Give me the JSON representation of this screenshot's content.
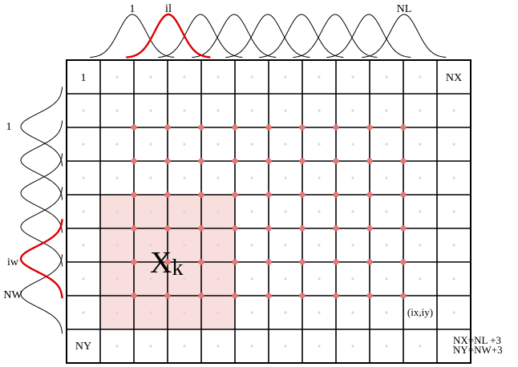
{
  "top_labels": {
    "first": "1",
    "highlight": "il",
    "last": "NL"
  },
  "left_labels": {
    "first": "1",
    "highlight": "iw",
    "last": "NW"
  },
  "cell_labels": {
    "top_left": "1",
    "top_right": "NX",
    "bottom_left": "NY",
    "pixel": "(ix,iy)"
  },
  "region_label": {
    "main": "X",
    "sub": "k"
  },
  "formulas": {
    "nx": "NX=NL +3",
    "ny": "NY=NW+3"
  },
  "colors": {
    "grid": "#000000",
    "highlight_curve": "#dd0000",
    "node": "#e87878",
    "region_fill": "#f9dede",
    "center_dot": "#d8d8d8"
  }
}
